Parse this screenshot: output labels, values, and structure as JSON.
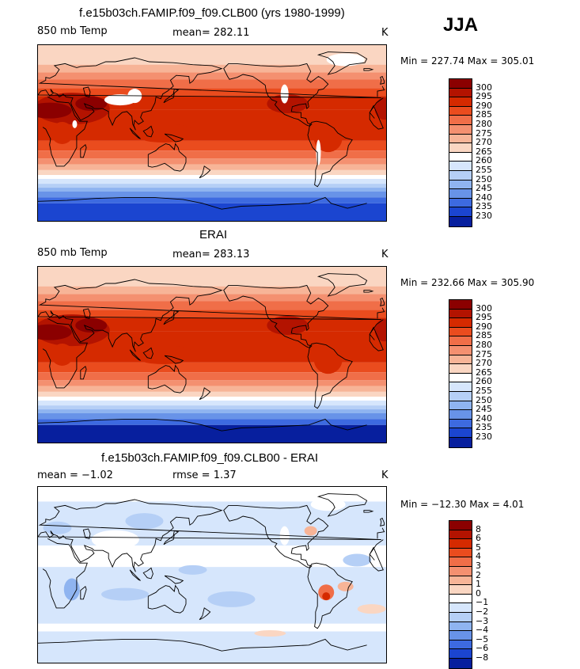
{
  "season": "JJA",
  "panels": [
    {
      "title": "f.e15b03ch.FAMIP.f09_f09.CLB00 (yrs 1980-1999)",
      "left_label": "850 mb Temp",
      "stat_label": "mean= 282.11",
      "units": "K",
      "minmax": "Min = 227.74 Max = 305.01",
      "colorbar": {
        "ticks": [
          "300",
          "295",
          "290",
          "285",
          "280",
          "275",
          "270",
          "265",
          "260",
          "255",
          "250",
          "245",
          "240",
          "235",
          "230"
        ],
        "colors": [
          "#8b0000",
          "#b31300",
          "#d52a00",
          "#ea4c1e",
          "#f06e48",
          "#f49070",
          "#f7b497",
          "#fad6c2",
          "#ffffff",
          "#d6e6fc",
          "#b5cff6",
          "#8fb4f0",
          "#6893e8",
          "#3d6ae0",
          "#1b45d0",
          "#071f9e"
        ]
      }
    },
    {
      "title": "ERAI",
      "left_label": "850 mb Temp",
      "stat_label": "mean= 283.13",
      "units": "K",
      "minmax": "Min = 232.66 Max = 305.90",
      "colorbar": {
        "ticks": [
          "300",
          "295",
          "290",
          "285",
          "280",
          "275",
          "270",
          "265",
          "260",
          "255",
          "250",
          "245",
          "240",
          "235",
          "230"
        ],
        "colors": [
          "#8b0000",
          "#b31300",
          "#d52a00",
          "#ea4c1e",
          "#f06e48",
          "#f49070",
          "#f7b497",
          "#fad6c2",
          "#ffffff",
          "#d6e6fc",
          "#b5cff6",
          "#8fb4f0",
          "#6893e8",
          "#3d6ae0",
          "#1b45d0",
          "#071f9e"
        ]
      }
    },
    {
      "title": "f.e15b03ch.FAMIP.f09_f09.CLB00 - ERAI",
      "left_label": "mean =   −1.02",
      "stat_label": "rmse =    1.37",
      "units": "K",
      "minmax": "Min = −12.30 Max =    4.01",
      "colorbar": {
        "ticks": [
          "8",
          "6",
          "5",
          "4",
          "3",
          "2",
          "1",
          "0",
          "−1",
          "−2",
          "−3",
          "−4",
          "−5",
          "−6",
          "−8"
        ],
        "colors": [
          "#8b0000",
          "#b31300",
          "#d52a00",
          "#ea4c1e",
          "#f06e48",
          "#f49070",
          "#f7b497",
          "#fad6c2",
          "#ffffff",
          "#d6e6fc",
          "#b5cff6",
          "#8fb4f0",
          "#6893e8",
          "#3d6ae0",
          "#1b45d0",
          "#071f9e"
        ]
      }
    }
  ]
}
